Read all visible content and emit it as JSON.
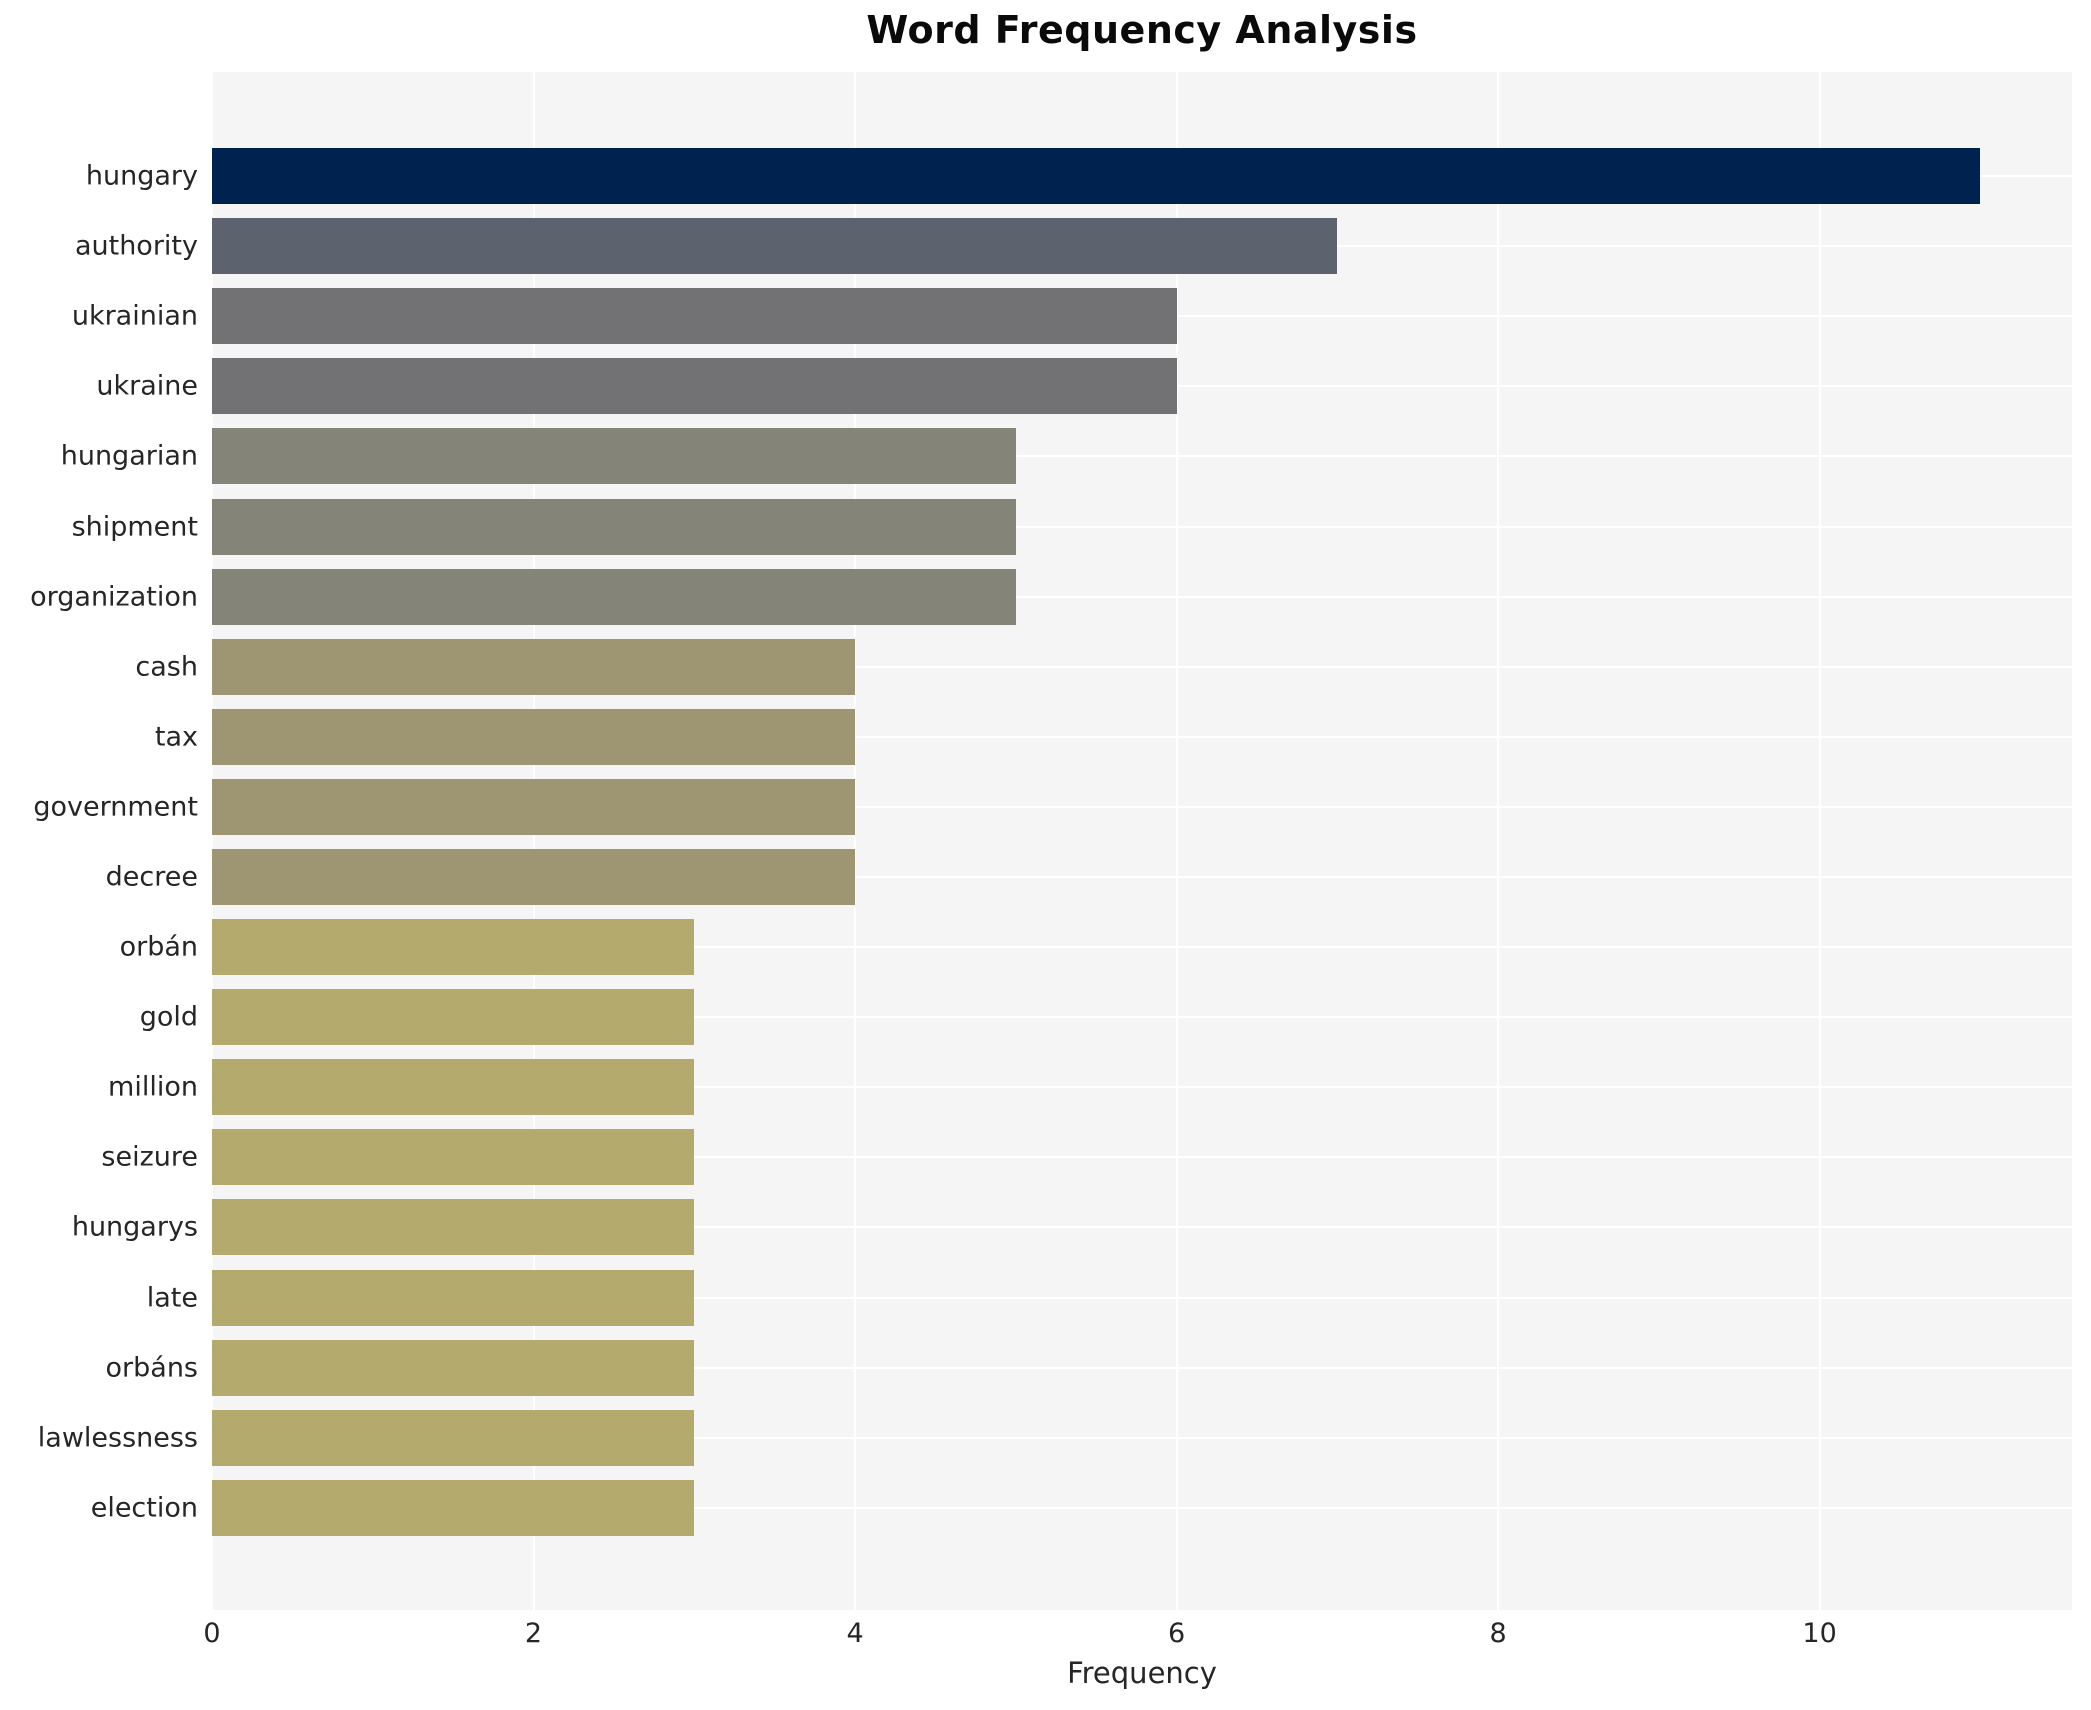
{
  "title": "Word Frequency Analysis",
  "chart_data": {
    "type": "bar",
    "orientation": "horizontal",
    "title": "Word Frequency Analysis",
    "xlabel": "Frequency",
    "ylabel": "",
    "categories": [
      "hungary",
      "authority",
      "ukrainian",
      "ukraine",
      "hungarian",
      "shipment",
      "organization",
      "cash",
      "tax",
      "government",
      "decree",
      "orbán",
      "gold",
      "million",
      "seizure",
      "hungarys",
      "late",
      "orbáns",
      "lawlessness",
      "election"
    ],
    "values": [
      11,
      7,
      6,
      6,
      5,
      5,
      5,
      4,
      4,
      4,
      4,
      3,
      3,
      3,
      3,
      3,
      3,
      3,
      3,
      3
    ],
    "bar_colors": [
      "#00224e",
      "#5d626f",
      "#727275",
      "#727275",
      "#858479",
      "#858479",
      "#858479",
      "#9e9672",
      "#9e9672",
      "#9e9672",
      "#9e9672",
      "#b4aa6e",
      "#b4aa6e",
      "#b4aa6e",
      "#b4aa6e",
      "#b4aa6e",
      "#b4aa6e",
      "#b4aa6e",
      "#b4aa6e",
      "#b4aa6e"
    ],
    "xlim": [
      0,
      11.57
    ],
    "xticks": [
      0,
      2,
      4,
      6,
      8,
      10
    ],
    "grid": true,
    "legend": false,
    "colors": {
      "figure_background": "#ffffff",
      "plot_background": "#f5f5f6",
      "grid_color": "#ffffff",
      "text_color": "#262626",
      "title_color": "#0a0a0a"
    }
  }
}
